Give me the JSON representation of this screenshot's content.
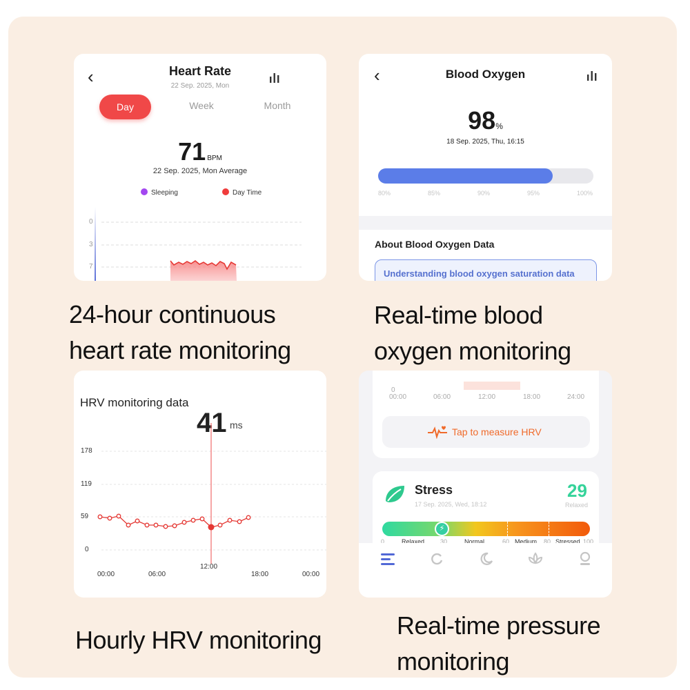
{
  "heart_rate": {
    "title": "Heart Rate",
    "date": "22 Sep. 2025, Mon",
    "tabs": [
      {
        "label": "Day",
        "active": true
      },
      {
        "label": "Week"
      },
      {
        "label": "Month"
      }
    ],
    "value": "71",
    "unit": "BPM",
    "average_label": "22 Sep. 2025, Mon Average",
    "legend": [
      {
        "label": "Sleeping",
        "color": "#a347f0"
      },
      {
        "label": "Day Time",
        "color": "#f03c3c"
      }
    ],
    "y_ticks": [
      "0",
      "3",
      "7"
    ],
    "caption": [
      "24-hour continuous",
      "heart rate monitoring"
    ]
  },
  "blood_oxygen": {
    "title": "Blood Oxygen",
    "value": "98",
    "unit": "%",
    "timestamp": "18 Sep. 2025, Thu, 16:15",
    "fill_percent": 98,
    "ticks": [
      "80%",
      "85%",
      "90%",
      "95%",
      "100%"
    ],
    "about_title": "About Blood Oxygen Data",
    "link_text": "Understanding blood oxygen saturation data",
    "caption": [
      "Real-time blood",
      "oxygen monitoring"
    ]
  },
  "hrv": {
    "title": "HRV monitoring data",
    "value": "41",
    "unit": "ms",
    "y_ticks": [
      "178",
      "119",
      "59",
      "0"
    ],
    "x_ticks": [
      "00:00",
      "06:00",
      "12:00",
      "18:00",
      "00:00"
    ],
    "caption": "Hourly HRV monitoring"
  },
  "stress": {
    "axis_ticks": [
      "0",
      "00:00",
      "06:00",
      "12:00",
      "18:00",
      "24:00"
    ],
    "measure_button": "Tap to measure HRV",
    "title": "Stress",
    "date": "17 Sep. 2025, Wed, 18:12",
    "value": "29",
    "level": "Relaxed",
    "scale_labels": [
      "0",
      "Relaxed",
      "30",
      "Normal",
      "60",
      "Medium",
      "80",
      "Stressed",
      "100"
    ],
    "nav": [
      {
        "name": "list",
        "active": true
      },
      {
        "name": "refresh"
      },
      {
        "name": "moon"
      },
      {
        "name": "lotus"
      },
      {
        "name": "profile"
      }
    ],
    "caption": [
      "Real-time pressure",
      "monitoring"
    ]
  }
}
